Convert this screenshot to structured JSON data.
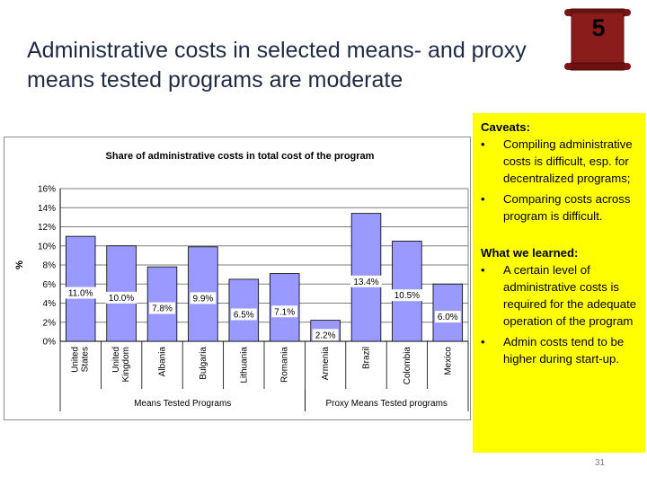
{
  "slide": {
    "title": "Administrative costs in selected means- and proxy means tested programs are moderate",
    "badge_number": "5",
    "page_number": "31"
  },
  "caveats": {
    "heading": "Caveats:",
    "items": [
      "Compiling administrative costs is difficult, esp. for decentralized programs;",
      "Comparing costs across program is difficult."
    ],
    "learned_heading": "What we learned:",
    "learned_items": [
      "A certain level of administrative costs is required for the adequate operation of the program",
      "Admin costs tend to be higher during start-up."
    ]
  },
  "colors": {
    "bar_fill": "#9999ff",
    "caveat_background": "#ffff00",
    "scroll_fill": "#8b1c1c"
  },
  "chart_data": {
    "type": "bar",
    "title": "Share of administrative costs in total cost of the program",
    "ylabel": "%",
    "xlabel": "",
    "ylim": [
      0,
      16
    ],
    "yticks": [
      "0%",
      "2%",
      "4%",
      "6%",
      "8%",
      "10%",
      "12%",
      "14%",
      "16%"
    ],
    "grid": true,
    "categories": [
      "United States",
      "United Kingdom",
      "Albania",
      "Bulgaria",
      "Lithuania",
      "Romania",
      "Armenia",
      "Brazil",
      "Colombia",
      "Mexico"
    ],
    "values": [
      11.0,
      10.0,
      7.8,
      9.9,
      6.5,
      7.1,
      2.2,
      13.4,
      10.5,
      6.0
    ],
    "data_labels": [
      "11.0%",
      "10.0%",
      "7.8%",
      "9.9%",
      "6.5%",
      "7.1%",
      "2.2%",
      "13.4%",
      "10.5%",
      "6.0%"
    ],
    "groups": [
      {
        "name": "Means Tested Programs",
        "count": 6
      },
      {
        "name": "Proxy Means Tested programs",
        "count": 4
      }
    ]
  }
}
